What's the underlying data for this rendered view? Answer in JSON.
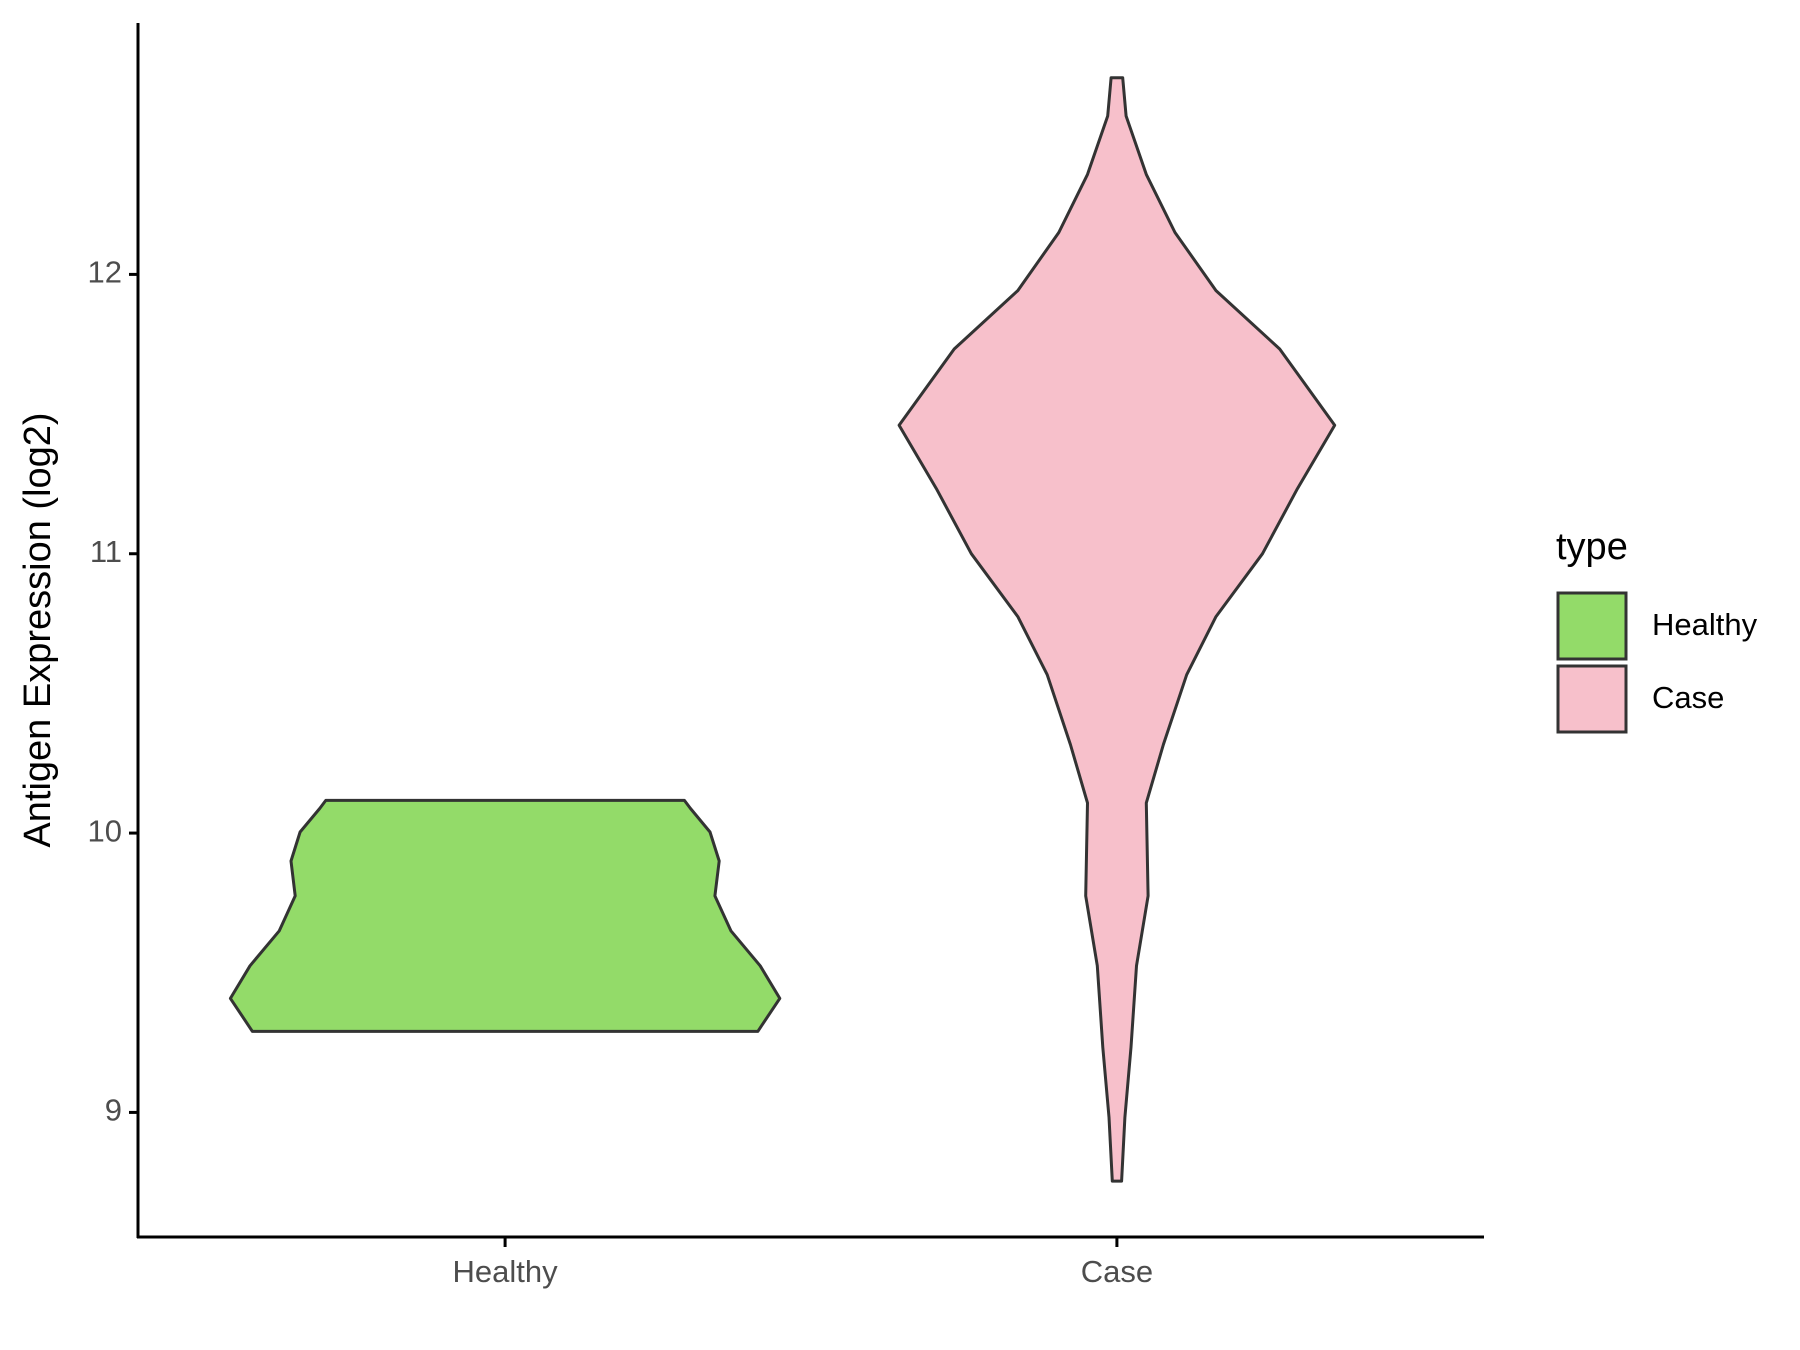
{
  "chart_data": {
    "type": "violin",
    "y_label": "Antigen Expression (log2)",
    "legend_title": "type",
    "categories": [
      "Healthy",
      "Case"
    ],
    "series": [
      {
        "name": "Healthy",
        "color": "#93db69",
        "y": [
          9.29,
          9.408,
          9.525,
          9.65,
          9.775,
          9.9,
          10.004,
          10.088,
          10.117
        ],
        "half_width": [
          0.413,
          0.449,
          0.417,
          0.369,
          0.343,
          0.35,
          0.335,
          0.303,
          0.293
        ]
      },
      {
        "name": "Case",
        "color": "#f7c0cb",
        "y": [
          8.754,
          8.983,
          9.233,
          9.525,
          9.775,
          10.108,
          10.317,
          10.567,
          10.775,
          11.0,
          11.233,
          11.46,
          11.733,
          11.942,
          12.15,
          12.358,
          12.567,
          12.704
        ],
        "half_width": [
          0.0076,
          0.013,
          0.023,
          0.032,
          0.051,
          0.048,
          0.076,
          0.114,
          0.162,
          0.238,
          0.295,
          0.356,
          0.266,
          0.162,
          0.095,
          0.048,
          0.015,
          0.0095
        ]
      }
    ],
    "ylim": [
      8.554,
      12.9
    ],
    "yticks": [
      9,
      10,
      11,
      12
    ],
    "legend_position": "right"
  }
}
